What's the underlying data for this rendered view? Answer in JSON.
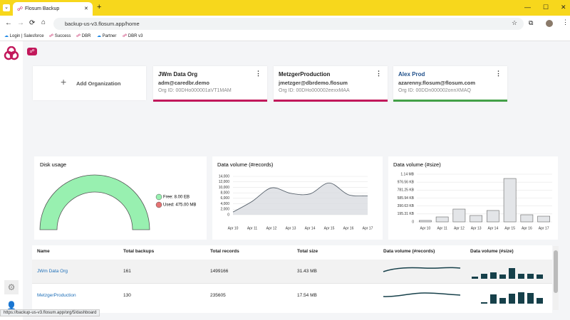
{
  "browser": {
    "tab_title": "Flosum Backup",
    "url": "backup-us-v3.flosum.app/home",
    "bookmarks": [
      "Login | Salesforce",
      "Success",
      "DBR",
      "Partner",
      "DBR v3"
    ],
    "status_url": "https://backup-us-v3.flosum.app/org/5/dashboard"
  },
  "organizations": {
    "add_label": "Add Organization",
    "cards": [
      {
        "name": "JWm Data Org",
        "user": "adm@caredbr.demo",
        "org_id": "Org ID: 00DHo000001aVT1MAM"
      },
      {
        "name": "MetzgerProduction",
        "user": "jmetzger@dbrdemo.flosum",
        "org_id": "Org ID: 00DHo000002eexxMAA"
      },
      {
        "name": "Alex Prod",
        "user": "azarenny.flosum@flosum.com",
        "org_id": "Org ID: 00DDn000002onnXMAQ"
      }
    ]
  },
  "disk_usage": {
    "title": "Disk usage",
    "legend": [
      "Free: 8.00 EB",
      "Used: 475.00 MB"
    ]
  },
  "records_chart": {
    "type": "area",
    "title": "Data volume (#records)",
    "color": "#d9dce1",
    "categories": [
      "Apr 10",
      "Apr 11",
      "Apr 12",
      "Apr 13",
      "Apr 14",
      "Apr 15",
      "Apr 16",
      "Apr 17"
    ],
    "values": [
      1000,
      4900,
      9800,
      7800,
      7600,
      11600,
      7300,
      6900
    ],
    "ylim": [
      0,
      14000
    ],
    "yticks": [
      0,
      {
        "value": 2000,
        "label": "2,000"
      },
      {
        "value": 4000,
        "label": "4,000"
      },
      {
        "value": 6000,
        "label": "6,000"
      },
      {
        "value": 8000,
        "label": "8,000"
      },
      {
        "value": 10000,
        "label": "10,000"
      },
      {
        "value": 12000,
        "label": "12,000"
      },
      {
        "value": 14000,
        "label": "14,000"
      }
    ],
    "grid": true
  },
  "size_chart": {
    "type": "bar",
    "title": "Data volume (#size)",
    "color": "#e3e5e8",
    "categories": [
      "Apr 10",
      "Apr 11",
      "Apr 12",
      "Apr 13",
      "Apr 14",
      "Apr 15",
      "Apr 16",
      "Apr 17"
    ],
    "values": [
      36000,
      125000,
      322000,
      161000,
      287000,
      1092000,
      179000,
      143000
    ],
    "ylim": [
      0,
      1200000
    ],
    "yticks": [
      0,
      {
        "value": 200000,
        "label": "195.31 KB"
      },
      {
        "value": 400000,
        "label": "390.63 KB"
      },
      {
        "value": 600000,
        "label": "585.94 KB"
      },
      {
        "value": 800000,
        "label": "781.25 KB"
      },
      {
        "value": 1000000,
        "label": "976.56 KB"
      },
      {
        "value": 1200000,
        "label": "1.14 MB"
      }
    ],
    "grid": true
  },
  "table": {
    "columns": [
      "Name",
      "Total backups",
      "Total records",
      "Total size",
      "Data volume (#records)",
      "Data volume (#size)"
    ],
    "rows": [
      [
        "JWm Data Org",
        161,
        1499166,
        "31.43 MB"
      ],
      [
        "MetzgerProduction",
        130,
        235605,
        "17.54 MB"
      ]
    ]
  }
}
